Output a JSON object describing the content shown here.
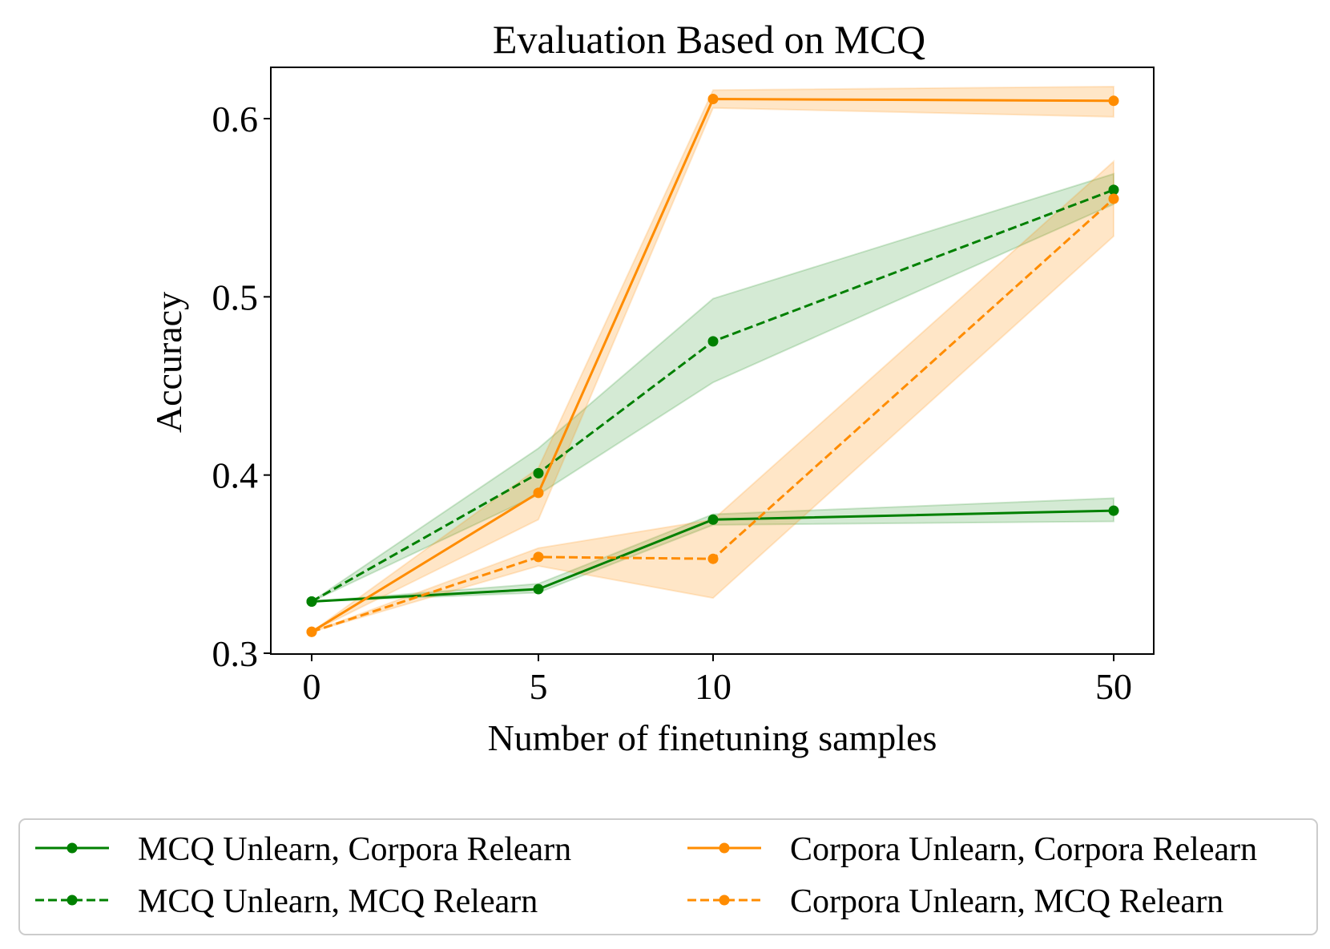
{
  "chart_data": {
    "type": "line",
    "title": "Evaluation Based on MCQ",
    "xlabel": "Number of finetuning samples",
    "ylabel": "Accuracy",
    "x": [
      "0",
      "5",
      "10",
      "50"
    ],
    "ylim": [
      0.3,
      0.63
    ],
    "yticks": [
      "0.3",
      "0.4",
      "0.5",
      "0.6"
    ],
    "grid": false,
    "legend_position": "bottom",
    "series": [
      {
        "name": "MCQ Unlearn, Corpora Relearn",
        "color": "#008000",
        "linestyle": "solid",
        "values": [
          0.329,
          0.336,
          0.375,
          0.38
        ],
        "lower": [
          0.329,
          0.334,
          0.372,
          0.374
        ],
        "upper": [
          0.329,
          0.339,
          0.378,
          0.387
        ]
      },
      {
        "name": "MCQ Unlearn, MCQ Relearn",
        "color": "#008000",
        "linestyle": "dashed",
        "values": [
          0.329,
          0.401,
          0.475,
          0.56
        ],
        "lower": [
          0.329,
          0.389,
          0.452,
          0.552
        ],
        "upper": [
          0.329,
          0.415,
          0.499,
          0.569
        ]
      },
      {
        "name": "Corpora Unlearn, Corpora Relearn",
        "color": "#ff8c00",
        "linestyle": "solid",
        "values": [
          0.312,
          0.39,
          0.611,
          0.61
        ],
        "lower": [
          0.312,
          0.375,
          0.606,
          0.601
        ],
        "upper": [
          0.312,
          0.404,
          0.616,
          0.618
        ]
      },
      {
        "name": "Corpora Unlearn, MCQ Relearn",
        "color": "#ff8c00",
        "linestyle": "dashed",
        "values": [
          0.312,
          0.354,
          0.353,
          0.555
        ],
        "lower": [
          0.312,
          0.349,
          0.331,
          0.534
        ],
        "upper": [
          0.312,
          0.359,
          0.375,
          0.576
        ]
      }
    ]
  }
}
